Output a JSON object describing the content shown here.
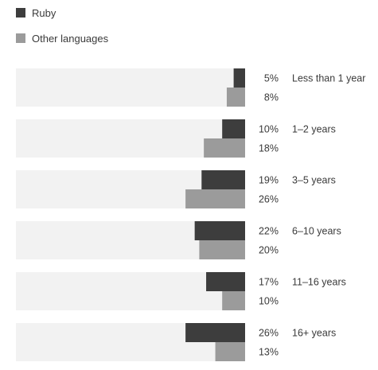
{
  "chart_data": {
    "type": "bar",
    "orientation": "horizontal",
    "categories": [
      "Less than 1 year",
      "1–2 years",
      "3–5 years",
      "6–10 years",
      "11–16 years",
      "16+ years"
    ],
    "series": [
      {
        "name": "Ruby",
        "values": [
          5,
          10,
          19,
          22,
          17,
          26
        ],
        "color": "#3d3d3d"
      },
      {
        "name": "Other languages",
        "values": [
          8,
          18,
          26,
          20,
          10,
          13
        ],
        "color": "#9b9b9b"
      }
    ],
    "value_labels": [
      [
        "5%",
        "8%"
      ],
      [
        "10%",
        "18%"
      ],
      [
        "19%",
        "26%"
      ],
      [
        "22%",
        "20%"
      ],
      [
        "17%",
        "10%"
      ],
      [
        "26%",
        "13%"
      ]
    ],
    "xlim": [
      0,
      100
    ],
    "track_color": "#f2f2f2",
    "legend": "top-left",
    "grid": false
  }
}
